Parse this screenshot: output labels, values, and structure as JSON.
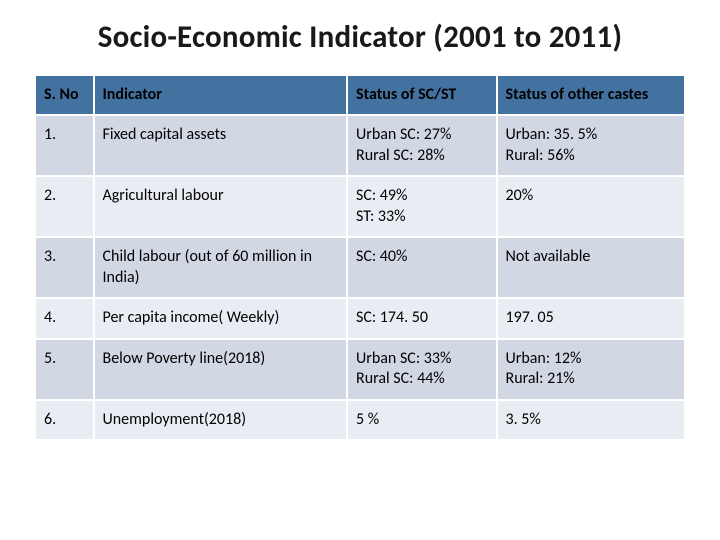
{
  "title": "Socio-Economic Indicator (2001 to 2011)",
  "header_bg": "#4472a0",
  "header_color": "#000000",
  "row_colors": [
    "#d1d7e3",
    "#e9ecf3",
    "#d1d7e3",
    "#e9ecf3",
    "#d1d7e3",
    "#e9ecf3"
  ],
  "row_text_color": "#000000",
  "columns": [
    "S. No",
    "Indicator",
    "Status of SC/ST",
    "Status of other castes"
  ],
  "rows": [
    {
      "sno": "1.",
      "indicator": "Fixed capital assets",
      "scst_lines": [
        "Urban SC: 27%",
        "Rural SC: 28%"
      ],
      "other_lines": [
        "Urban: 35. 5%",
        "Rural: 56%"
      ]
    },
    {
      "sno": "2.",
      "indicator": "Agricultural labour",
      "scst_lines": [
        "SC: 49%",
        "ST: 33%"
      ],
      "other_lines": [
        "20%"
      ]
    },
    {
      "sno": "3.",
      "indicator": "Child labour (out of 60 million in India)",
      "scst_lines": [
        "SC: 40%"
      ],
      "other_lines": [
        "Not available"
      ]
    },
    {
      "sno": "4.",
      "indicator": "Per capita income( Weekly)",
      "scst_lines": [
        "SC: 174. 50"
      ],
      "other_lines": [
        "197. 05"
      ]
    },
    {
      "sno": "5.",
      "indicator": "Below Poverty line(2018)",
      "scst_lines": [
        "Urban SC: 33%",
        "Rural SC: 44%"
      ],
      "other_lines": [
        "Urban: 12%",
        "Rural: 21%"
      ]
    },
    {
      "sno": "6.",
      "indicator": "Unemployment(2018)",
      "scst_lines": [
        "5 %"
      ],
      "other_lines": [
        "3. 5%"
      ]
    }
  ]
}
